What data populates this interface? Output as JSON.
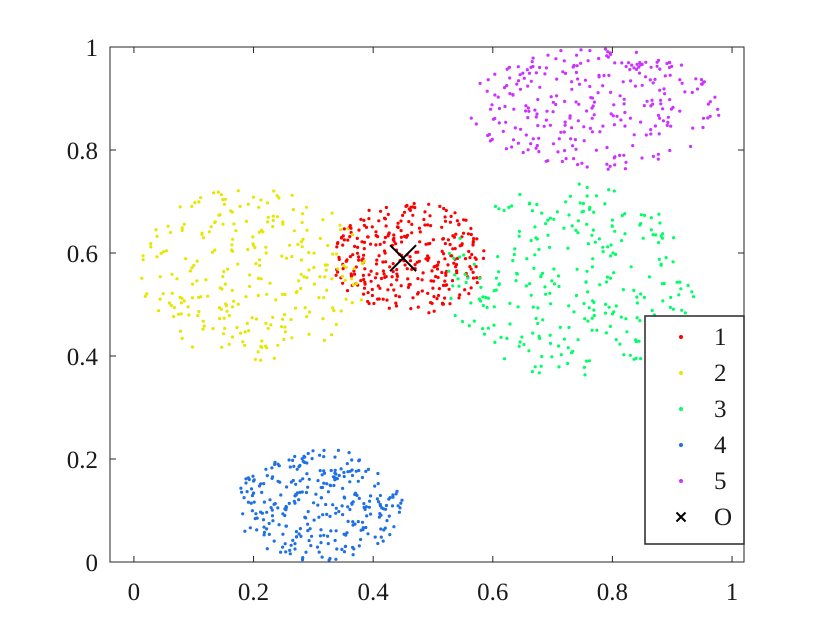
{
  "chart_data": {
    "type": "scatter",
    "xlim": [
      -0.04,
      1.02
    ],
    "ylim": [
      0,
      1
    ],
    "xticks": [
      "0",
      "0.2",
      "0.4",
      "0.6",
      "0.8",
      "1"
    ],
    "xtick_values": [
      0,
      0.2,
      0.4,
      0.6,
      0.8,
      1
    ],
    "yticks": [
      "0",
      "0.2",
      "0.4",
      "0.6",
      "0.8",
      "1"
    ],
    "ytick_values": [
      0,
      0.2,
      0.4,
      0.6,
      0.8,
      1
    ],
    "grid": false,
    "legend_position": "bottom-right",
    "series": [
      {
        "name": "1",
        "color": "#ff0000",
        "marker": "dot",
        "points": 320,
        "cluster": {
          "cx": 0.46,
          "cy": 0.59,
          "rx": 0.13,
          "ry": 0.11
        }
      },
      {
        "name": "2",
        "color": "#e6e600",
        "marker": "dot",
        "points": 260,
        "cluster": {
          "cx": 0.2,
          "cy": 0.56,
          "rx": 0.19,
          "ry": 0.17
        }
      },
      {
        "name": "3",
        "color": "#00ff66",
        "marker": "dot",
        "points": 280,
        "cluster": {
          "cx": 0.73,
          "cy": 0.55,
          "rx": 0.21,
          "ry": 0.19
        }
      },
      {
        "name": "4",
        "color": "#1f6fe5",
        "marker": "dot",
        "points": 300,
        "cluster": {
          "cx": 0.31,
          "cy": 0.11,
          "rx": 0.14,
          "ry": 0.11
        }
      },
      {
        "name": "5",
        "color": "#cc33ff",
        "marker": "dot",
        "points": 280,
        "cluster": {
          "cx": 0.77,
          "cy": 0.88,
          "rx": 0.21,
          "ry": 0.12
        }
      }
    ],
    "markers": [
      {
        "name": "O",
        "x": 0.45,
        "y": 0.59,
        "marker": "x",
        "color": "#000000"
      }
    ]
  }
}
